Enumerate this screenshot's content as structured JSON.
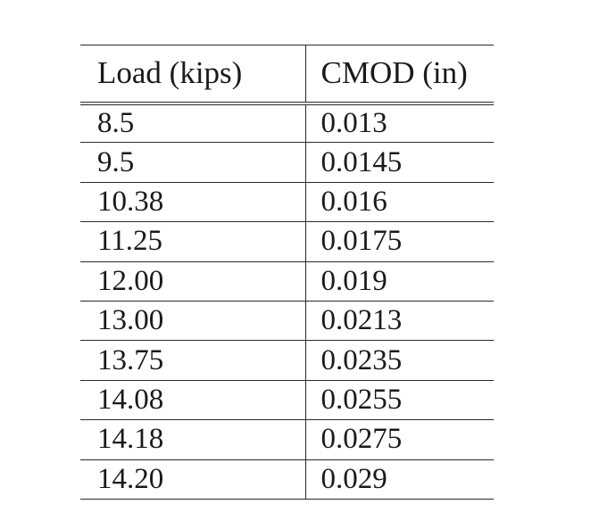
{
  "table": {
    "headers": [
      "Load (kips)",
      "CMOD (in)"
    ],
    "rows": [
      [
        "8.5",
        "0.013"
      ],
      [
        "9.5",
        "0.0145"
      ],
      [
        "10.38",
        "0.016"
      ],
      [
        "11.25",
        "0.0175"
      ],
      [
        "12.00",
        "0.019"
      ],
      [
        "13.00",
        "0.0213"
      ],
      [
        "13.75",
        "0.0235"
      ],
      [
        "14.08",
        "0.0255"
      ],
      [
        "14.18",
        "0.0275"
      ],
      [
        "14.20",
        "0.029"
      ]
    ]
  }
}
